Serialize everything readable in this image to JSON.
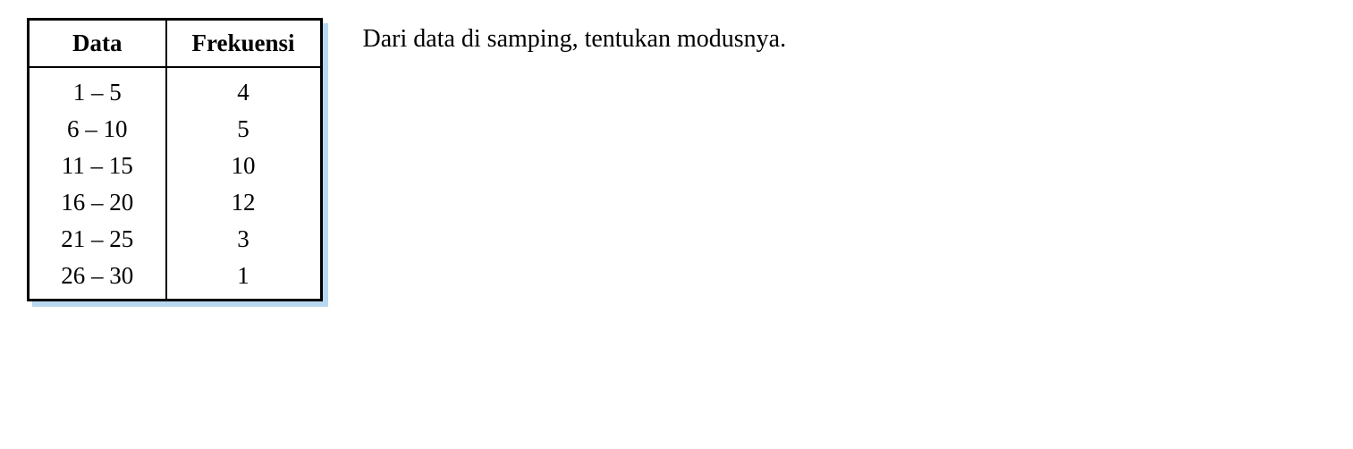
{
  "table": {
    "columns": [
      "Data",
      "Frekuensi"
    ],
    "rows": [
      [
        "1 – 5",
        "4"
      ],
      [
        "6 – 10",
        "5"
      ],
      [
        "11 – 15",
        "10"
      ],
      [
        "16 – 20",
        "12"
      ],
      [
        "21 – 25",
        "3"
      ],
      [
        "26 – 30",
        "1"
      ]
    ],
    "border_color": "#000000",
    "shadow_color": "#b8d8f0",
    "background_color": "#ffffff",
    "header_fontsize": 27,
    "cell_fontsize": 27,
    "font_family": "Times New Roman"
  },
  "question": {
    "text": "Dari data di samping, tentukan modusnya.",
    "fontsize": 28,
    "color": "#000000"
  }
}
